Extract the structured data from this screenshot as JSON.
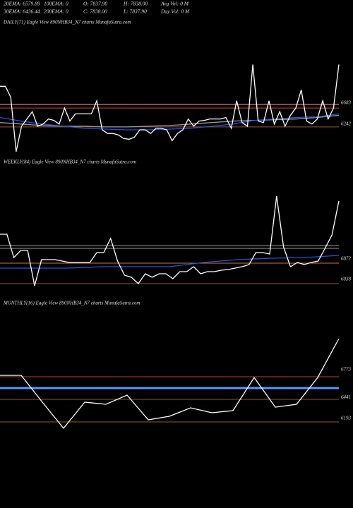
{
  "header": {
    "row1": [
      "20EMA: 6579.89",
      "100EMA: 0",
      "O: 7837.90",
      "H: 7838.00",
      "Avg Vol: 0  M"
    ],
    "row2": [
      "30EMA: 6436.44",
      "200EMA: 0",
      "C: 7838.00",
      "L: 7837.90",
      "Day Vol: 0  M"
    ]
  },
  "chart_data": [
    {
      "type": "line",
      "title": "DAILY(71) Eagle  View  890NHB34_N7 charts MunafaSutra.com",
      "ylim": [
        5588,
        8249
      ],
      "yticks": [
        6683,
        6242
      ],
      "reference_lines": [
        {
          "value": 6653,
          "color": "#ff9aa8"
        },
        {
          "value": 6576,
          "color": "#d04040"
        },
        {
          "value": 6181,
          "color": "#a0522d"
        }
      ],
      "series": [
        {
          "color": "#9a9a9a",
          "values": [
            6272,
            6242,
            6211,
            6196,
            6196,
            6181,
            6181,
            6196,
            6211,
            6242,
            6272,
            6303,
            6318,
            6333,
            6348,
            6379,
            6424
          ]
        },
        {
          "color": "#2255dd",
          "values": [
            6379,
            6303,
            6242,
            6196,
            6151,
            6135,
            6120,
            6120,
            6135,
            6151,
            6196,
            6242,
            6318,
            6348,
            6379,
            6394,
            6455
          ]
        },
        {
          "color": "#ffffff",
          "values": [
            7033,
            7033,
            6805,
            5664,
            6196,
            6348,
            6500,
            6196,
            6242,
            6348,
            6318,
            6242,
            6576,
            6303,
            6455,
            6455,
            6455,
            6455,
            6729,
            6120,
            6044,
            6044,
            6014,
            5938,
            5922,
            5968,
            6120,
            6120,
            6044,
            6151,
            6151,
            6120,
            5892,
            6044,
            6120,
            6348,
            6196,
            6303,
            6318,
            6348,
            6348,
            6348,
            6379,
            6151,
            6729,
            6272,
            6196,
            7489,
            6303,
            6272,
            6729,
            6242,
            6500,
            6196,
            6424,
            6576,
            6957,
            6303,
            6242,
            6348,
            6729,
            6348,
            6576,
            7489
          ]
        }
      ]
    },
    {
      "type": "line",
      "title": "WEEKLY(84) Eagle  View  890NHB34_N7 charts MunafaSutra.com",
      "ylim": [
        5492,
        10668
      ],
      "yticks": [
        6872,
        6038
      ],
      "reference_lines": [
        {
          "value": 7418,
          "color": "#9a9a9a"
        },
        {
          "value": 7303,
          "color": "#9a9a9a"
        },
        {
          "value": 6700,
          "color": "#e07030"
        },
        {
          "value": 5865,
          "color": "#a0522d"
        }
      ],
      "series": [
        {
          "color": "#2255dd",
          "values": [
            6498,
            6498,
            6498,
            6556,
            6556,
            6556,
            6728,
            6843,
            6901,
            6930,
            7016
          ]
        },
        {
          "color": "#ffffff",
          "values": [
            7879,
            7879,
            6930,
            7217,
            7217,
            5779,
            6843,
            6843,
            6843,
            6786,
            6728,
            6728,
            6728,
            6728,
            7131,
            7131,
            7706,
            6786,
            6211,
            6124,
            5865,
            6268,
            6124,
            6268,
            6268,
            6067,
            6354,
            6354,
            6556,
            6268,
            6354,
            6354,
            6412,
            6440,
            6498,
            6556,
            6642,
            7131,
            7131,
            7073,
            9432,
            7361,
            6556,
            6728,
            6642,
            6728,
            6786,
            7303,
            7850,
            9230
          ]
        }
      ]
    },
    {
      "type": "line",
      "title": "MONTHLY(16) Eagle  View  890NHB34_N7 charts MunafaSutra.com",
      "ylim": [
        5966,
        7479
      ],
      "yticks": [
        6773,
        6441,
        6193
      ],
      "reference_lines": [
        {
          "value": 6689,
          "color": "#a0522d"
        },
        {
          "value": 6562,
          "color": "#9a9a9a"
        },
        {
          "value": 6554,
          "color": "#5599ff"
        },
        {
          "value": 6420,
          "color": "#a0522d"
        },
        {
          "value": 6151,
          "color": "#a0522d"
        }
      ],
      "series": [
        {
          "color": "#ffffff",
          "values": [
            6706,
            6706,
            6386,
            6075,
            6386,
            6361,
            6470,
            6176,
            6218,
            6319,
            6260,
            6285,
            6680,
            6327,
            6361,
            6680,
            7143
          ]
        }
      ]
    }
  ]
}
